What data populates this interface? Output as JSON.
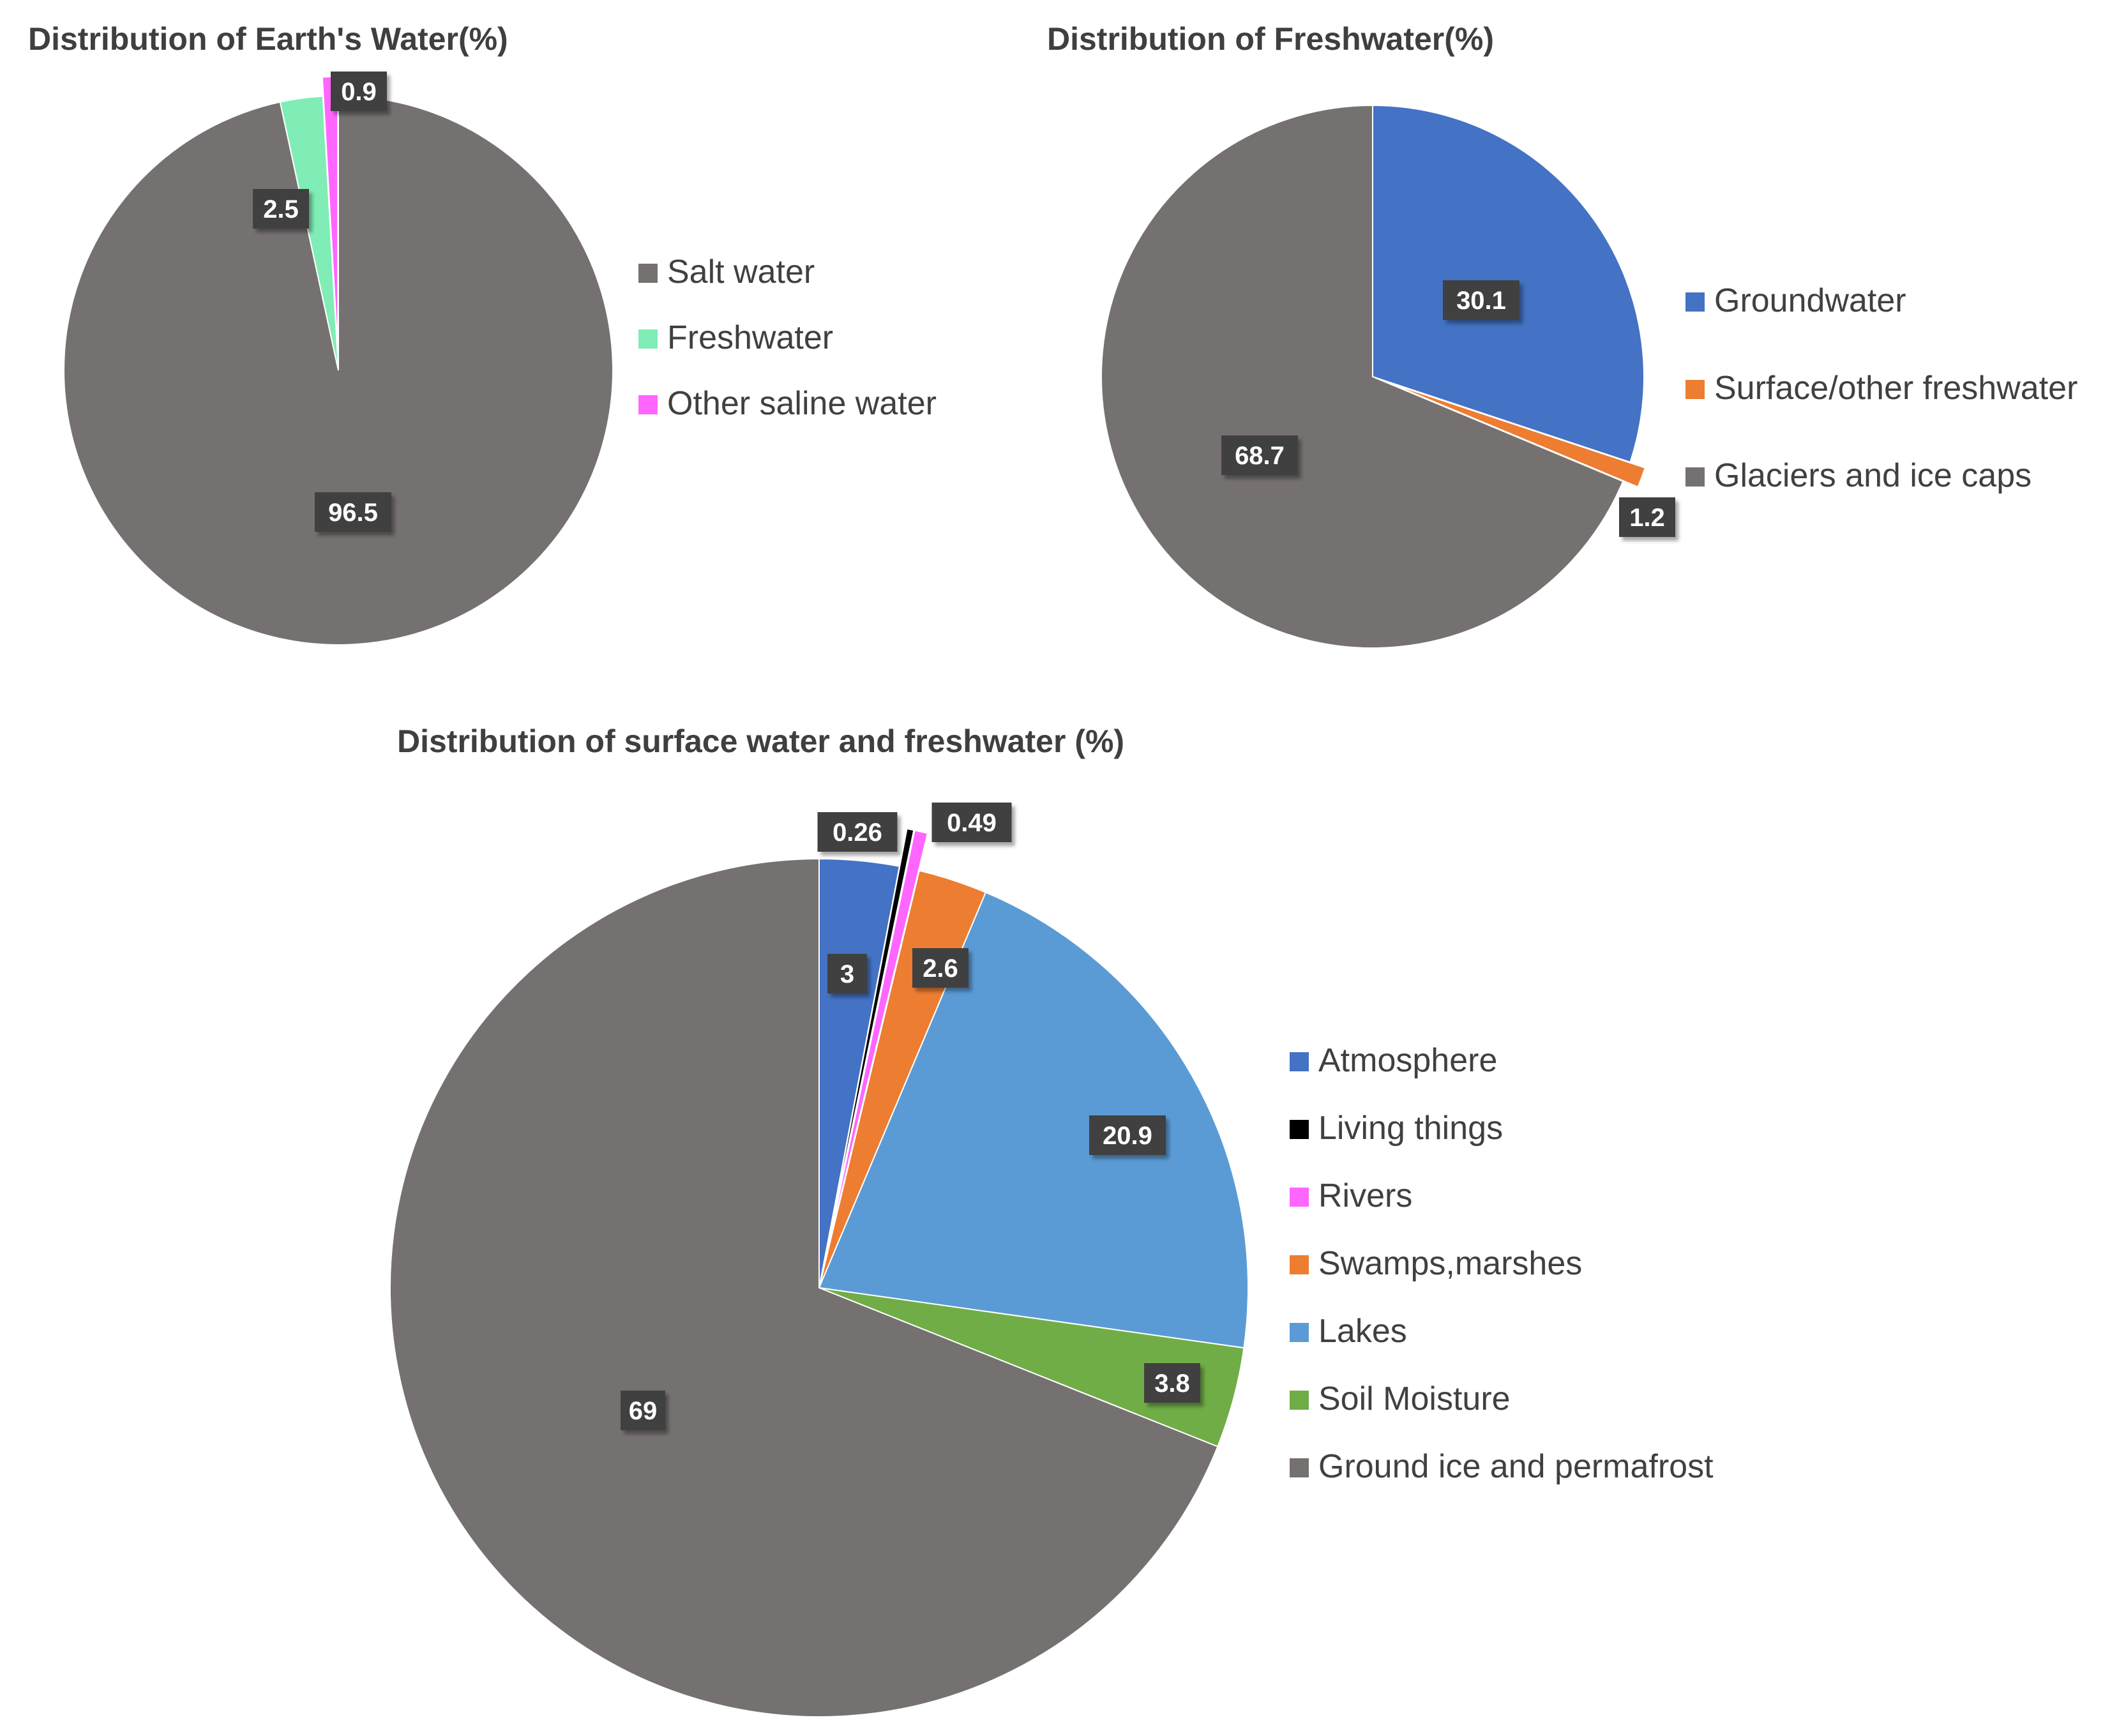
{
  "chart_data": [
    {
      "type": "pie",
      "title": "Distribution of Earth's Water(%)",
      "start_angle_deg": 0,
      "legend_position": "right",
      "series": [
        {
          "name": "Salt water",
          "value": 96.5,
          "label": "96.5",
          "color": "#767171"
        },
        {
          "name": "Freshwater",
          "value": 2.5,
          "label": "2.5",
          "color": "#7FEDB5"
        },
        {
          "name": "Other saline water",
          "value": 0.9,
          "label": "0.9",
          "color": "#FF66FF",
          "exploded": true
        }
      ],
      "legend_order": [
        "Salt water",
        "Freshwater",
        "Other saline water"
      ]
    },
    {
      "type": "pie",
      "title": "Distribution of Freshwater(%)",
      "start_angle_deg": 0,
      "legend_position": "right",
      "series": [
        {
          "name": "Groundwater",
          "value": 30.1,
          "label": "30.1",
          "color": "#4472C4"
        },
        {
          "name": "Surface/other freshwater",
          "value": 1.2,
          "label": "1.2",
          "color": "#ED7D31",
          "exploded": true
        },
        {
          "name": "Glaciers and ice caps",
          "value": 68.7,
          "label": "68.7",
          "color": "#767171"
        }
      ],
      "legend_order": [
        "Groundwater",
        "Surface/other freshwater",
        "Glaciers and ice caps"
      ]
    },
    {
      "type": "pie",
      "title": "Distribution of surface water and freshwater (%)",
      "start_angle_deg": 0,
      "legend_position": "right",
      "series": [
        {
          "name": "Atmosphere",
          "value": 3,
          "label": "3",
          "color": "#4472C4"
        },
        {
          "name": "Living things",
          "value": 0.26,
          "label": "0.26",
          "color": "#000000",
          "exploded": true
        },
        {
          "name": "Rivers",
          "value": 0.49,
          "label": "0.49",
          "color": "#FF66FF",
          "exploded": true
        },
        {
          "name": "Swamps,marshes",
          "value": 2.6,
          "label": "2.6",
          "color": "#ED7D31"
        },
        {
          "name": "Lakes",
          "value": 20.9,
          "label": "20.9",
          "color": "#5B9BD5"
        },
        {
          "name": "Soil Moisture",
          "value": 3.8,
          "label": "3.8",
          "color": "#70AD47"
        },
        {
          "name": "Ground ice and permafrost",
          "value": 69,
          "label": "69",
          "color": "#767171"
        }
      ],
      "legend_order": [
        "Atmosphere",
        "Living things",
        "Rivers",
        "Swamps,marshes",
        "Lakes",
        "Soil Moisture",
        "Ground ice and permafrost"
      ]
    }
  ]
}
